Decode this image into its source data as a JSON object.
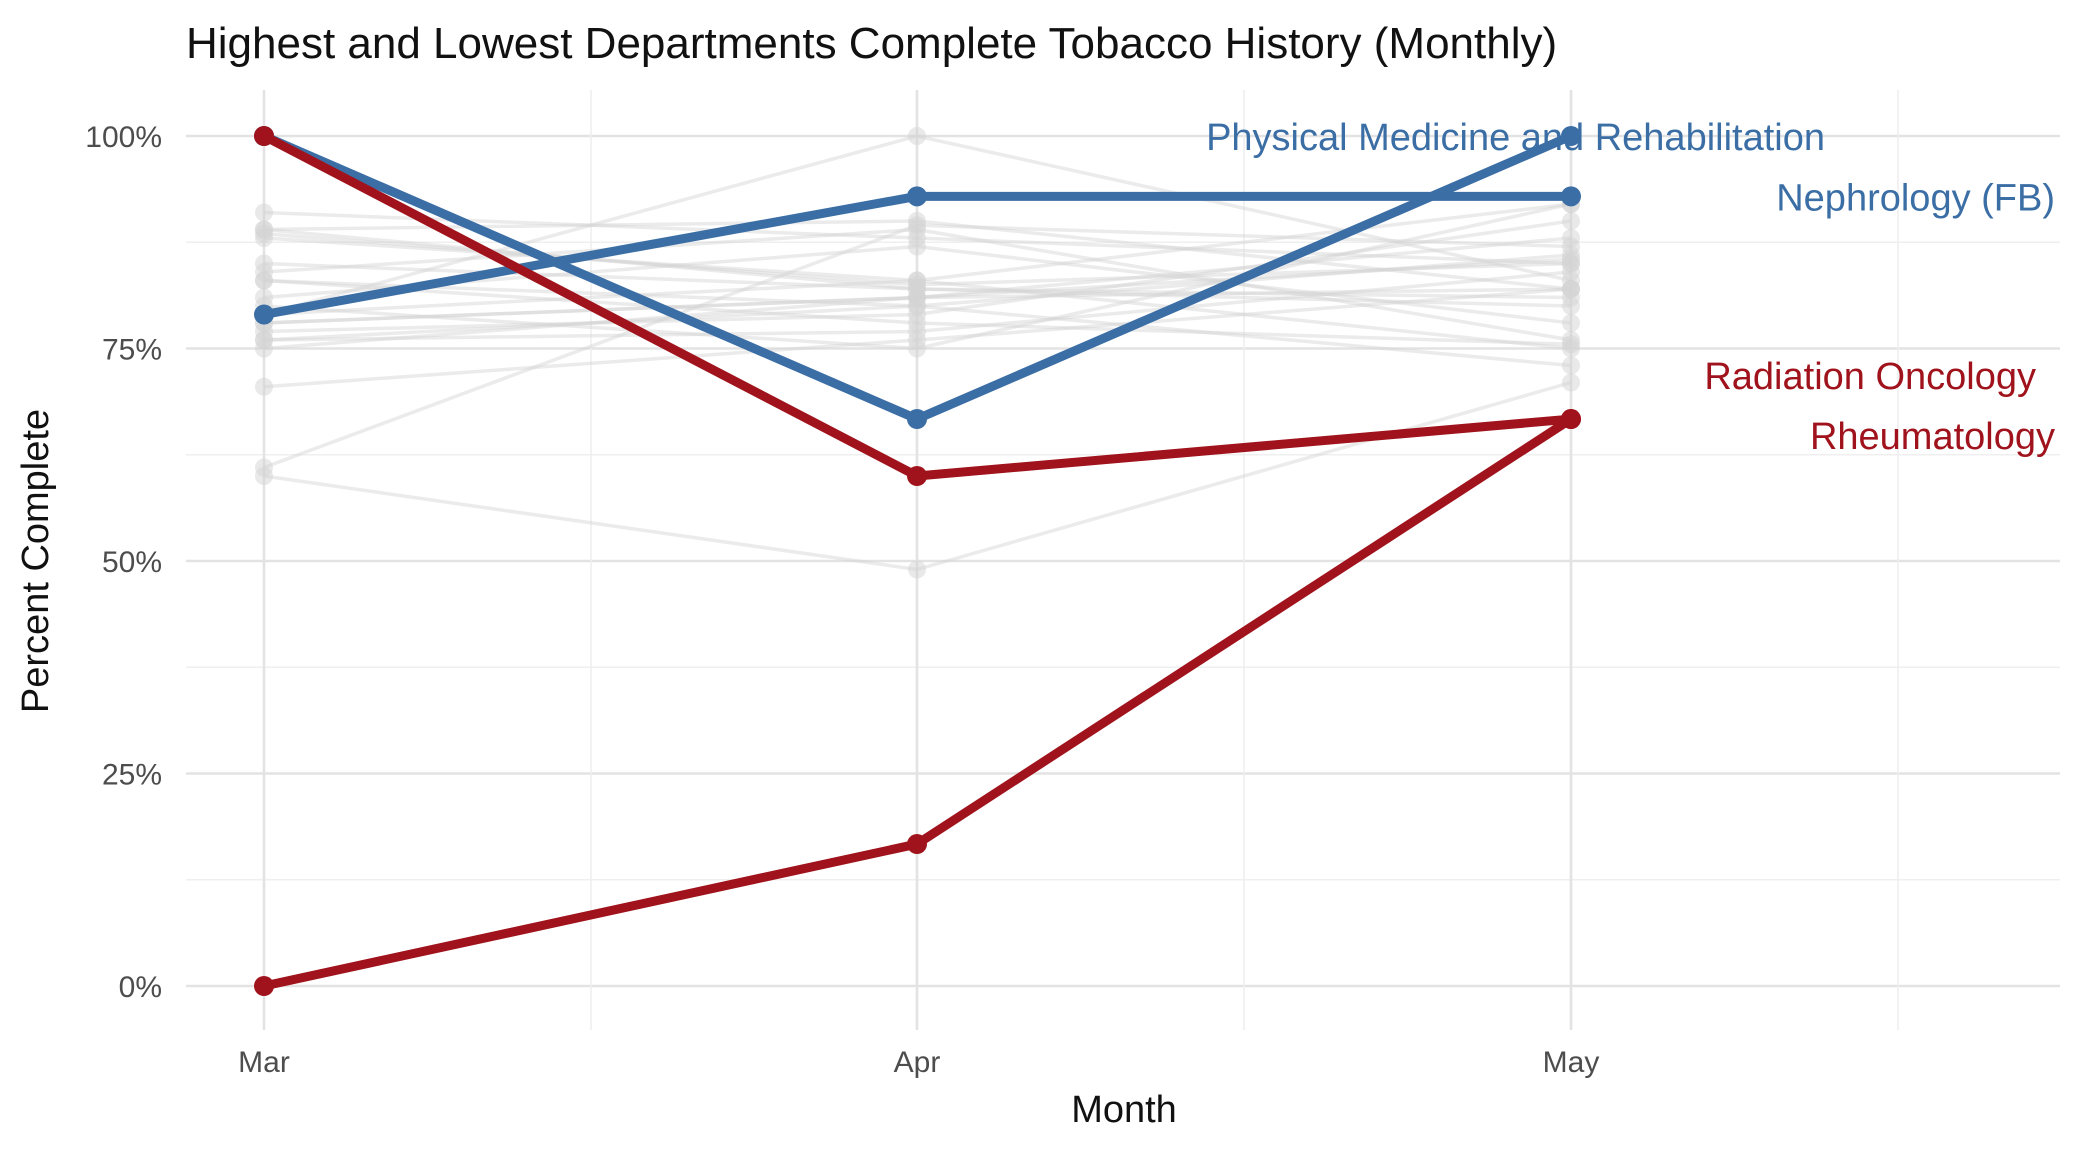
{
  "chart_data": {
    "type": "line",
    "title": "Highest and Lowest Departments Complete Tobacco History (Monthly)",
    "xlabel": "Month",
    "ylabel": "Percent Complete",
    "categories": [
      "Mar",
      "Apr",
      "May"
    ],
    "y_tick_labels": [
      "0%",
      "25%",
      "50%",
      "75%",
      "100%"
    ],
    "yticks": [
      0,
      25,
      50,
      75,
      100
    ],
    "ylim": [
      -4,
      104
    ],
    "grid": true,
    "highlight_colors": {
      "highest": "#3b6ea5",
      "lowest": "#a0131c",
      "background": "#d3d3d3"
    },
    "series": [
      {
        "name": "Physical Medicine and Rehabilitation",
        "group": "highest",
        "values": [
          100,
          66.7,
          100
        ]
      },
      {
        "name": "Nephrology (FB)",
        "group": "highest",
        "values": [
          79,
          92.9,
          92.9
        ]
      },
      {
        "name": "Radiation Oncology",
        "group": "lowest",
        "values": [
          0,
          16.7,
          66.7
        ]
      },
      {
        "name": "Rheumatology",
        "group": "lowest",
        "values": [
          100,
          60,
          66.7
        ]
      }
    ],
    "background_series": [
      [
        91,
        88,
        85
      ],
      [
        89,
        90,
        82
      ],
      [
        88,
        83,
        92
      ],
      [
        85,
        82,
        80
      ],
      [
        83,
        80,
        86
      ],
      [
        81,
        87,
        78
      ],
      [
        79,
        83,
        75
      ],
      [
        78,
        81,
        88
      ],
      [
        77,
        79,
        90
      ],
      [
        76,
        77,
        84
      ],
      [
        75,
        81,
        82
      ],
      [
        70.5,
        76,
        82
      ],
      [
        61,
        89.5,
        87
      ],
      [
        60,
        49,
        71
      ],
      [
        89,
        82,
        81
      ],
      [
        83,
        78,
        75.5
      ],
      [
        80,
        75,
        92
      ],
      [
        79,
        100,
        83
      ],
      [
        88.5,
        82.5,
        85
      ],
      [
        84,
        89,
        76
      ],
      [
        78,
        81,
        85.5
      ],
      [
        76,
        80,
        73
      ]
    ]
  }
}
